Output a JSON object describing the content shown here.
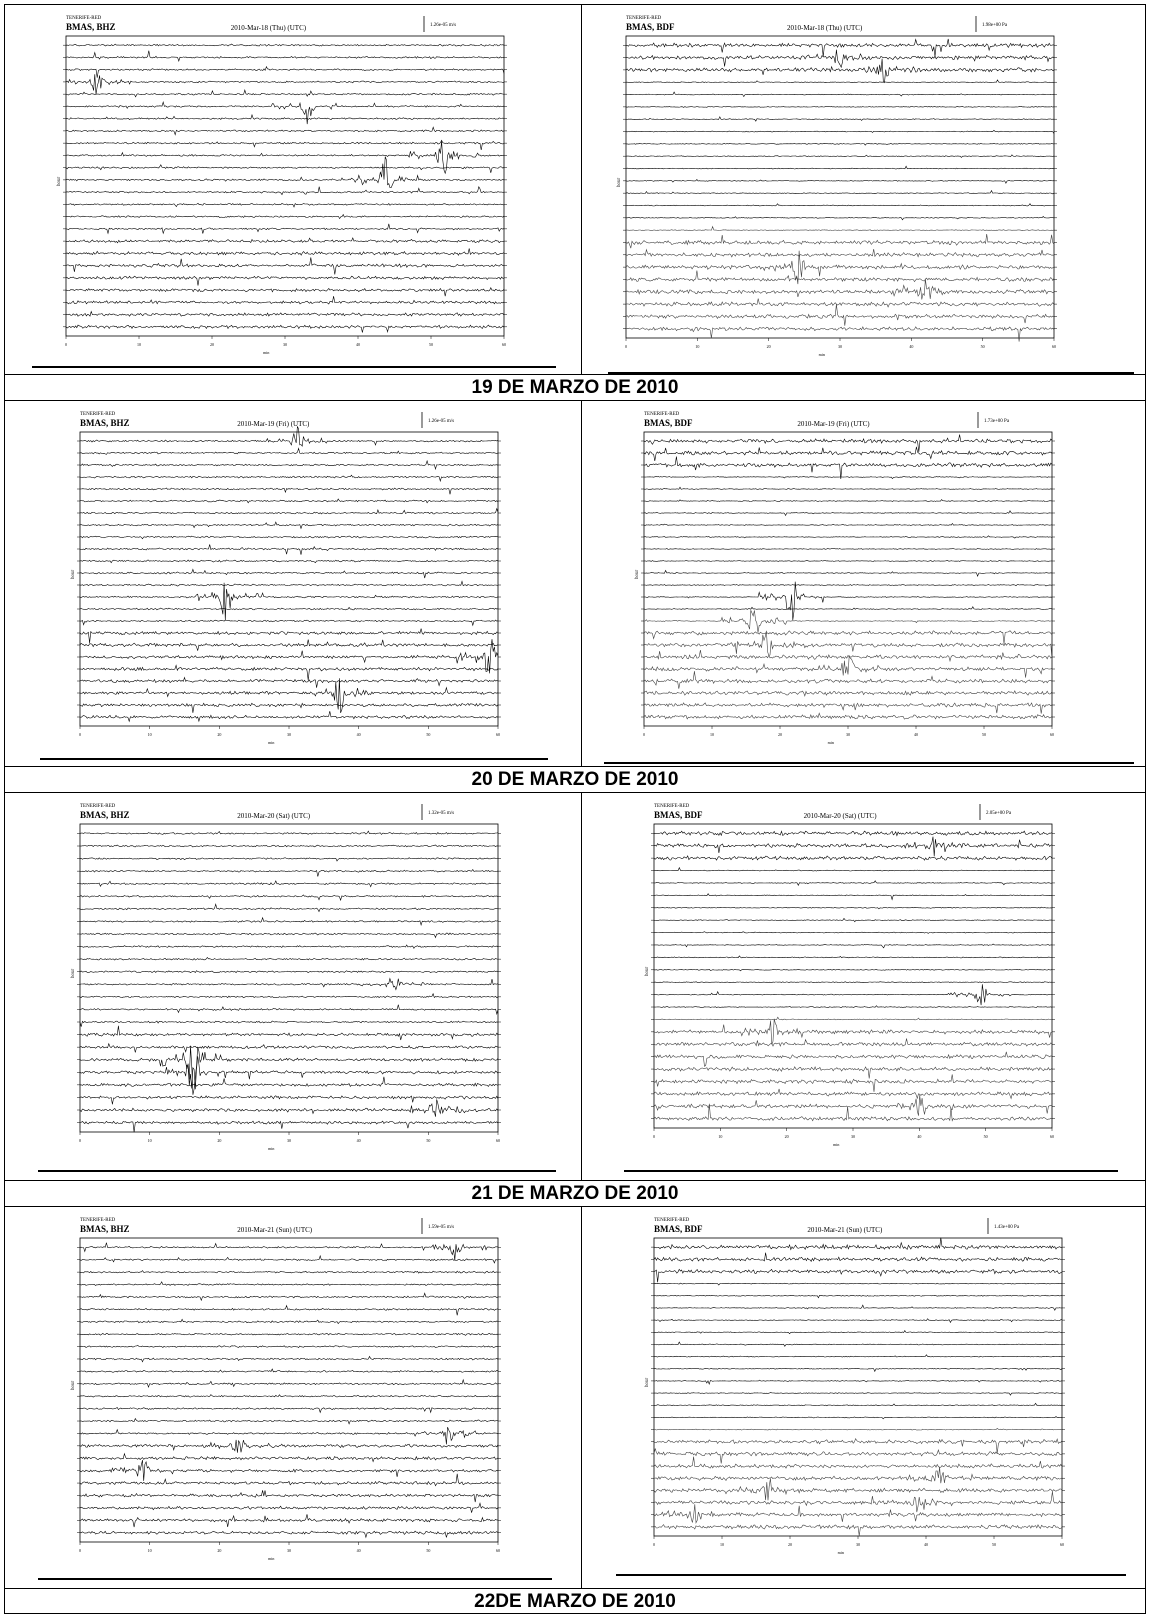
{
  "date_labels": [
    "19 DE MARZO DE 2010",
    "20 DE MARZO DE 2010",
    "21 DE MARZO DE 2010",
    "22DE MARZO DE 2010"
  ],
  "rows": [
    {
      "left": {
        "network": "TENERIFE-RED",
        "station": "BMAS, BHZ",
        "date": "2010-Mar-18 (Thu) (UTC)",
        "scale": "1.26e-05 m/s",
        "xlabel": "min",
        "ylabel": "hour"
      },
      "right": {
        "network": "TENERIFE-RED",
        "station": "BMAS, BDF",
        "date": "2010-Mar-18 (Thu) (UTC)",
        "scale": "1.98e+00 Pa",
        "xlabel": "min",
        "ylabel": "hour"
      }
    },
    {
      "left": {
        "network": "TENERIFE-RED",
        "station": "BMAS, BHZ",
        "date": "2010-Mar-19 (Fri) (UTC)",
        "scale": "1.26e-05 m/s",
        "xlabel": "min",
        "ylabel": "hour"
      },
      "right": {
        "network": "TENERIFE-RED",
        "station": "BMAS, BDF",
        "date": "2010-Mar-19 (Fri) (UTC)",
        "scale": "1.73e+00 Pa",
        "xlabel": "min",
        "ylabel": "hour"
      }
    },
    {
      "left": {
        "network": "TENERIFE-RED",
        "station": "BMAS, BHZ",
        "date": "2010-Mar-20 (Sat) (UTC)",
        "scale": "1.32e-05 m/s",
        "xlabel": "min",
        "ylabel": "hour"
      },
      "right": {
        "network": "TENERIFE-RED",
        "station": "BMAS, BDF",
        "date": "2010-Mar-20 (Sat) (UTC)",
        "scale": "2.05e+00 Pa",
        "xlabel": "min",
        "ylabel": "hour"
      }
    },
    {
      "left": {
        "network": "TENERIFE-RED",
        "station": "BMAS, BHZ",
        "date": "2010-Mar-21 (Sun) (UTC)",
        "scale": "1.59e-05 m/s",
        "xlabel": "min",
        "ylabel": "hour"
      },
      "right": {
        "network": "TENERIFE-RED",
        "station": "BMAS, BDF",
        "date": "2010-Mar-21 (Sun) (UTC)",
        "scale": "1.43e+00 Pa",
        "xlabel": "min",
        "ylabel": "hour"
      }
    }
  ],
  "x_ticks": [
    "0",
    "10",
    "20",
    "30",
    "40",
    "50",
    "60"
  ],
  "trace_color": "#000000",
  "chart_data": [
    {
      "type": "line",
      "title": "2010-Mar-18 (Thu) (UTC)",
      "xlabel": "min",
      "ylabel": "hour",
      "xlim": [
        0,
        60
      ],
      "rows": 24
    },
    {
      "type": "line",
      "title": "2010-Mar-18 (Thu) (UTC)",
      "xlabel": "min",
      "ylabel": "hour",
      "xlim": [
        0,
        60
      ],
      "rows": 24
    },
    {
      "type": "line",
      "title": "2010-Mar-19 (Fri) (UTC)",
      "xlabel": "min",
      "ylabel": "hour",
      "xlim": [
        0,
        60
      ],
      "rows": 24
    },
    {
      "type": "line",
      "title": "2010-Mar-19 (Fri) (UTC)",
      "xlabel": "min",
      "ylabel": "hour",
      "xlim": [
        0,
        60
      ],
      "rows": 24
    },
    {
      "type": "line",
      "title": "2010-Mar-20 (Sat) (UTC)",
      "xlabel": "min",
      "ylabel": "hour",
      "xlim": [
        0,
        60
      ],
      "rows": 24
    },
    {
      "type": "line",
      "title": "2010-Mar-20 (Sat) (UTC)",
      "xlabel": "min",
      "ylabel": "hour",
      "xlim": [
        0,
        60
      ],
      "rows": 24
    },
    {
      "type": "line",
      "title": "2010-Mar-21 (Sun) (UTC)",
      "xlabel": "min",
      "ylabel": "hour",
      "xlim": [
        0,
        60
      ],
      "rows": 24
    },
    {
      "type": "line",
      "title": "2010-Mar-21 (Sun) (UTC)",
      "xlabel": "min",
      "ylabel": "hour",
      "xlim": [
        0,
        60
      ],
      "rows": 24
    }
  ]
}
